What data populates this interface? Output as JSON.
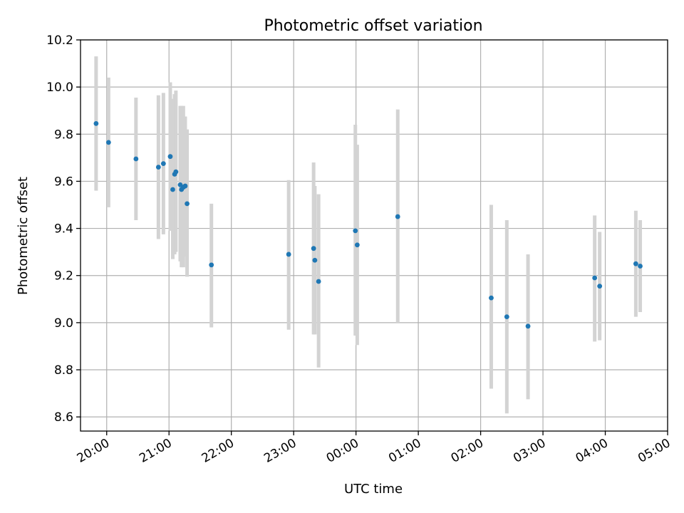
{
  "chart_data": {
    "type": "scatter",
    "title": "Photometric offset variation",
    "xlabel": "UTC time",
    "ylabel": "Photometric offset",
    "grid": true,
    "x_unit": "hours",
    "xlim": [
      19.58,
      29.0
    ],
    "ylim": [
      8.54,
      10.2
    ],
    "x_ticks": [
      {
        "value": 20,
        "label": "20:00"
      },
      {
        "value": 21,
        "label": "21:00"
      },
      {
        "value": 22,
        "label": "22:00"
      },
      {
        "value": 23,
        "label": "23:00"
      },
      {
        "value": 24,
        "label": "00:00"
      },
      {
        "value": 25,
        "label": "01:00"
      },
      {
        "value": 26,
        "label": "02:00"
      },
      {
        "value": 27,
        "label": "03:00"
      },
      {
        "value": 28,
        "label": "04:00"
      },
      {
        "value": 29,
        "label": "05:00"
      }
    ],
    "y_ticks": [
      {
        "value": 8.6,
        "label": "8.6"
      },
      {
        "value": 8.8,
        "label": "8.8"
      },
      {
        "value": 9.0,
        "label": "9.0"
      },
      {
        "value": 9.2,
        "label": "9.2"
      },
      {
        "value": 9.4,
        "label": "9.4"
      },
      {
        "value": 9.6,
        "label": "9.6"
      },
      {
        "value": 9.8,
        "label": "9.8"
      },
      {
        "value": 10.0,
        "label": "10.0"
      },
      {
        "value": 10.2,
        "label": "10.2"
      }
    ],
    "colors": {
      "point": "#1f77b4",
      "errorbar": "#d3d3d3",
      "grid": "#b0b0b0"
    },
    "points": [
      {
        "x": 19.83,
        "y": 9.845,
        "low": 9.56,
        "high": 10.13
      },
      {
        "x": 20.03,
        "y": 9.765,
        "low": 9.49,
        "high": 10.04
      },
      {
        "x": 20.47,
        "y": 9.695,
        "low": 9.435,
        "high": 9.955
      },
      {
        "x": 20.83,
        "y": 9.66,
        "low": 9.355,
        "high": 9.965
      },
      {
        "x": 20.91,
        "y": 9.675,
        "low": 9.375,
        "high": 9.975
      },
      {
        "x": 21.02,
        "y": 9.705,
        "low": 9.39,
        "high": 10.02
      },
      {
        "x": 21.06,
        "y": 9.565,
        "low": 9.27,
        "high": 9.95
      },
      {
        "x": 21.09,
        "y": 9.63,
        "low": 9.29,
        "high": 9.97
      },
      {
        "x": 21.11,
        "y": 9.64,
        "low": 9.3,
        "high": 9.985
      },
      {
        "x": 21.18,
        "y": 9.585,
        "low": 9.26,
        "high": 9.92
      },
      {
        "x": 21.2,
        "y": 9.565,
        "low": 9.235,
        "high": 9.92
      },
      {
        "x": 21.23,
        "y": 9.575,
        "low": 9.235,
        "high": 9.92
      },
      {
        "x": 21.26,
        "y": 9.58,
        "low": 9.28,
        "high": 9.875
      },
      {
        "x": 21.29,
        "y": 9.505,
        "low": 9.195,
        "high": 9.82
      },
      {
        "x": 21.68,
        "y": 9.245,
        "low": 8.98,
        "high": 9.505
      },
      {
        "x": 22.92,
        "y": 9.29,
        "low": 8.97,
        "high": 9.605
      },
      {
        "x": 23.32,
        "y": 9.315,
        "low": 8.95,
        "high": 9.68
      },
      {
        "x": 23.34,
        "y": 9.265,
        "low": 8.95,
        "high": 9.58
      },
      {
        "x": 23.4,
        "y": 9.175,
        "low": 8.81,
        "high": 9.545
      },
      {
        "x": 23.99,
        "y": 9.39,
        "low": 8.945,
        "high": 9.84
      },
      {
        "x": 24.02,
        "y": 9.33,
        "low": 8.905,
        "high": 9.755
      },
      {
        "x": 24.67,
        "y": 9.45,
        "low": 9.0,
        "high": 9.905
      },
      {
        "x": 26.17,
        "y": 9.105,
        "low": 8.72,
        "high": 9.5
      },
      {
        "x": 26.42,
        "y": 9.025,
        "low": 8.615,
        "high": 9.435
      },
      {
        "x": 26.76,
        "y": 8.985,
        "low": 8.675,
        "high": 9.29
      },
      {
        "x": 27.83,
        "y": 9.19,
        "low": 8.92,
        "high": 9.455
      },
      {
        "x": 27.91,
        "y": 9.155,
        "low": 8.925,
        "high": 9.385
      },
      {
        "x": 28.49,
        "y": 9.25,
        "low": 9.025,
        "high": 9.475
      },
      {
        "x": 28.56,
        "y": 9.24,
        "low": 9.045,
        "high": 9.435
      }
    ]
  }
}
